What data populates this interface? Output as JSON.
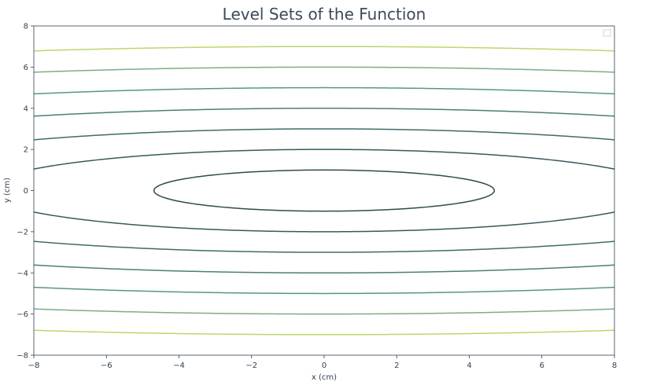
{
  "chart_data": {
    "type": "contour",
    "title": "Level Sets of the Function",
    "xlabel": "x (cm)",
    "ylabel": "y (cm)",
    "xlim": [
      -8,
      8
    ],
    "ylim": [
      -8,
      8
    ],
    "xticks": [
      -8,
      -6,
      -4,
      -2,
      0,
      2,
      4,
      6,
      8
    ],
    "yticks": [
      -8,
      -6,
      -4,
      -2,
      0,
      2,
      4,
      6,
      8
    ],
    "xtick_labels": [
      "−8",
      "−6",
      "−4",
      "−2",
      "0",
      "2",
      "4",
      "6",
      "8"
    ],
    "ytick_labels": [
      "−8",
      "−6",
      "−4",
      "−2",
      "0",
      "2",
      "4",
      "6",
      "8"
    ],
    "grid": false,
    "legend": {
      "placement": "top-right",
      "entries": []
    },
    "function": "f(x, y) = x^2 / 22 + y^2",
    "levels": [
      1,
      4,
      9,
      16,
      25,
      36,
      49
    ],
    "level_colors": [
      "#2f4b4d",
      "#365a5c",
      "#3f6b6a",
      "#4a7f78",
      "#5b9585",
      "#7cae85",
      "#b9d96a"
    ]
  }
}
